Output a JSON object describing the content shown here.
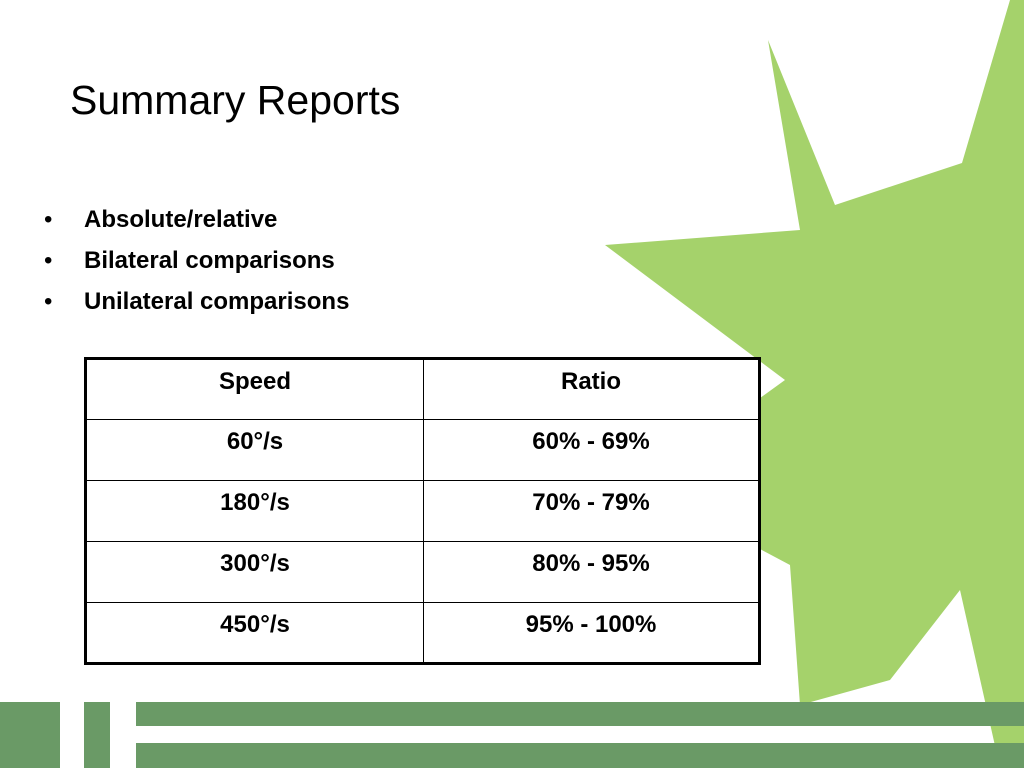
{
  "slide": {
    "title": "Summary Reports",
    "bullet_symbol": "•",
    "bullets": [
      "Absolute/relative",
      "Bilateral comparisons",
      "Unilateral comparisons"
    ]
  },
  "table": {
    "headers": [
      "Speed",
      "Ratio"
    ],
    "rows": [
      [
        "60°/s",
        "60% - 69%"
      ],
      [
        "180°/s",
        "70% - 79%"
      ],
      [
        "300°/s",
        "80% - 95%"
      ],
      [
        "450°/s",
        "95% - 100%"
      ]
    ]
  },
  "colors": {
    "star": "#a5d26b",
    "footer_bars": "#6a9a66",
    "text": "#000000"
  },
  "decor": {
    "background_shape": "starburst",
    "footer": "horizontal-bars"
  }
}
